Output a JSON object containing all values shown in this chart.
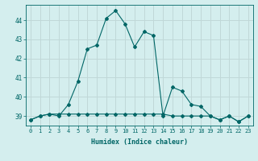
{
  "xlabel": "Humidex (Indice chaleur)",
  "ylabel": "",
  "x": [
    0,
    1,
    2,
    3,
    4,
    5,
    6,
    7,
    8,
    9,
    10,
    11,
    12,
    13,
    14,
    15,
    16,
    17,
    18,
    19,
    20,
    21,
    22,
    23
  ],
  "line1": [
    38.8,
    39.0,
    39.1,
    39.0,
    39.6,
    40.8,
    42.5,
    42.7,
    44.1,
    44.5,
    43.8,
    42.6,
    43.4,
    43.2,
    39.0,
    40.5,
    40.3,
    39.6,
    39.5,
    39.0,
    38.8,
    39.0,
    38.7,
    39.0
  ],
  "line2": [
    38.8,
    39.0,
    39.1,
    39.1,
    39.1,
    39.1,
    39.1,
    39.1,
    39.1,
    39.1,
    39.1,
    39.1,
    39.1,
    39.1,
    39.1,
    39.0,
    39.0,
    39.0,
    39.0,
    39.0,
    38.8,
    39.0,
    38.7,
    39.0
  ],
  "line_color": "#006666",
  "bg_color": "#d4eeee",
  "grid_color": "#c0d8d8",
  "tick_color": "#006666",
  "ylim": [
    38.5,
    44.8
  ],
  "yticks": [
    39,
    40,
    41,
    42,
    43,
    44
  ]
}
